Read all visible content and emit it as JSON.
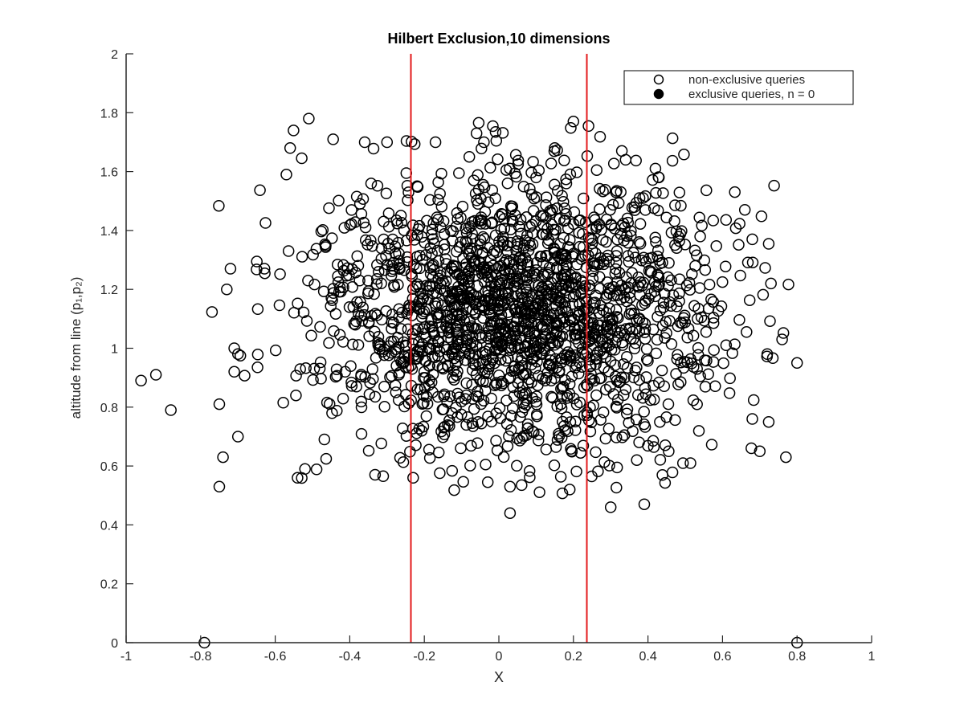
{
  "chart_data": {
    "type": "scatter",
    "title": "Hilbert Exclusion,10 dimensions",
    "xlabel": "X",
    "ylabel": "altitude from line (p₁,p₂)",
    "xlim": [
      -1,
      1
    ],
    "ylim": [
      0,
      2
    ],
    "x_ticks": [
      "-1",
      "-0.8",
      "-0.6",
      "-0.4",
      "-0.2",
      "0",
      "0.2",
      "0.4",
      "0.6",
      "0.8",
      "1"
    ],
    "y_ticks": [
      "0",
      "0.2",
      "0.4",
      "0.6",
      "0.8",
      "1",
      "1.2",
      "1.4",
      "1.6",
      "1.8",
      "2"
    ],
    "grid": false,
    "legend_position": "top-right",
    "legend": [
      {
        "label": "non-exclusive queries",
        "marker": "open-circle"
      },
      {
        "label": "exclusive queries, n = 0",
        "marker": "filled-circle"
      }
    ],
    "vertical_lines": {
      "color": "#e31a1c",
      "x": [
        -0.236,
        0.236
      ]
    },
    "series": [
      {
        "name": "non-exclusive queries",
        "marker": "open-circle",
        "color": "#000000",
        "approx_count": 2000,
        "center_x": 0.05,
        "std_x": 0.27,
        "center_y": 1.12,
        "std_y": 0.24,
        "points": [
          [
            -0.96,
            0.89
          ],
          [
            -0.92,
            0.91
          ],
          [
            -0.88,
            0.79
          ],
          [
            -0.79,
            0.0
          ],
          [
            0.8,
            0.0
          ],
          [
            -0.75,
            0.81
          ],
          [
            -0.74,
            0.63
          ],
          [
            -0.75,
            0.53
          ],
          [
            -0.73,
            1.2
          ],
          [
            -0.72,
            1.27
          ],
          [
            -0.71,
            1.0
          ],
          [
            -0.7,
            0.98
          ],
          [
            -0.71,
            0.92
          ],
          [
            -0.7,
            0.7
          ],
          [
            -0.51,
            1.78
          ],
          [
            -0.56,
            1.68
          ],
          [
            -0.57,
            1.59
          ],
          [
            -0.36,
            1.7
          ],
          [
            -0.3,
            1.7
          ],
          [
            -0.23,
            0.56
          ],
          [
            -0.17,
            1.7
          ],
          [
            -0.06,
            1.73
          ],
          [
            -0.04,
            1.7
          ],
          [
            0.2,
            1.77
          ],
          [
            0.15,
            1.68
          ],
          [
            0.33,
            1.67
          ],
          [
            0.34,
            1.64
          ],
          [
            0.42,
            1.61
          ],
          [
            0.66,
            1.47
          ],
          [
            0.68,
            1.37
          ],
          [
            0.73,
            1.22
          ],
          [
            0.72,
            0.98
          ],
          [
            0.76,
            1.03
          ],
          [
            0.8,
            0.95
          ],
          [
            0.77,
            0.63
          ],
          [
            0.7,
            0.65
          ],
          [
            0.68,
            0.76
          ],
          [
            0.3,
            0.46
          ],
          [
            0.39,
            0.47
          ],
          [
            0.03,
            0.44
          ],
          [
            0.03,
            0.53
          ],
          [
            0.19,
            0.52
          ],
          [
            -0.54,
            0.56
          ],
          [
            -0.52,
            0.59
          ],
          [
            0.1,
            1.58
          ],
          [
            0.0,
            1.0
          ],
          [
            0.05,
            1.1
          ],
          [
            -0.1,
            1.2
          ],
          [
            0.1,
            1.25
          ],
          [
            -0.2,
            1.05
          ]
        ]
      },
      {
        "name": "exclusive queries, n = 0",
        "marker": "filled-circle",
        "color": "#000000",
        "points": []
      }
    ]
  }
}
